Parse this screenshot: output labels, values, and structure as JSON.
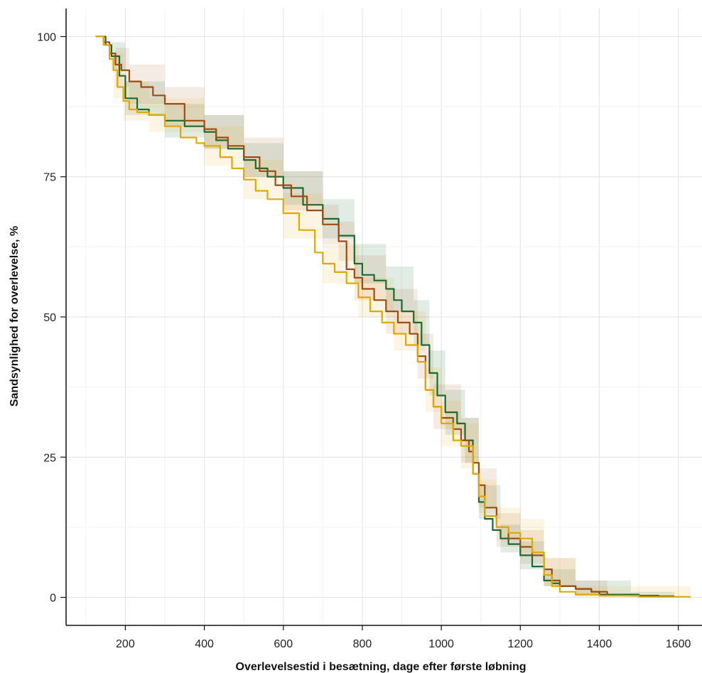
{
  "chart_data": {
    "type": "line",
    "title": "",
    "xlabel": "Overlevelsestid  i besætning, dage efter første løbning",
    "ylabel": "Sandsynlighed for overlevelse, %",
    "xlim": [
      50,
      1660
    ],
    "ylim": [
      -5,
      105
    ],
    "xticks": [
      200,
      400,
      600,
      800,
      1000,
      1200,
      1400,
      1600
    ],
    "yticks": [
      0,
      25,
      50,
      75,
      100
    ],
    "grid": true,
    "legend": "none",
    "series": [
      {
        "color": "#1b6b2f",
        "band_opacity": 0.13,
        "x": [
          125,
          150,
          165,
          185,
          200,
          230,
          260,
          300,
          350,
          400,
          430,
          460,
          500,
          530,
          560,
          600,
          650,
          700,
          740,
          780,
          800,
          830,
          860,
          880,
          900,
          930,
          950,
          970,
          990,
          1010,
          1040,
          1060,
          1080,
          1095,
          1110,
          1130,
          1150,
          1170,
          1200,
          1230,
          1260,
          1280,
          1300,
          1340,
          1380,
          1400,
          1450,
          1500,
          1550,
          1590
        ],
        "y": [
          100,
          98.5,
          96.5,
          93,
          89,
          87,
          86,
          85,
          84,
          83,
          81.5,
          80,
          78,
          76.5,
          75,
          73,
          70,
          67.5,
          64.5,
          59.5,
          57.5,
          56.5,
          55,
          53,
          51,
          49,
          45,
          40,
          36,
          33,
          31,
          28,
          22,
          17,
          14,
          12,
          10.5,
          9.5,
          7.5,
          5.5,
          3,
          2.5,
          2,
          1.5,
          1,
          0.5,
          0.5,
          0.3,
          0.2,
          0.2
        ],
        "band": [
          [
            125,
            100,
            100
          ],
          [
            165,
            94,
            99
          ],
          [
            200,
            86,
            92
          ],
          [
            300,
            82,
            88
          ],
          [
            400,
            80,
            86
          ],
          [
            500,
            75,
            81
          ],
          [
            600,
            70,
            76
          ],
          [
            700,
            64,
            71
          ],
          [
            780,
            56,
            63
          ],
          [
            860,
            51,
            59
          ],
          [
            930,
            45,
            53
          ],
          [
            970,
            36,
            44
          ],
          [
            1010,
            29,
            37
          ],
          [
            1060,
            24,
            32
          ],
          [
            1095,
            14,
            20
          ],
          [
            1150,
            8,
            13
          ],
          [
            1200,
            5,
            10
          ],
          [
            1260,
            2,
            5
          ],
          [
            1340,
            0.5,
            3
          ],
          [
            1480,
            0,
            1
          ],
          [
            1590,
            0,
            0.5
          ]
        ]
      },
      {
        "color": "#a04a10",
        "band_opacity": 0.11,
        "x": [
          125,
          145,
          160,
          175,
          190,
          210,
          240,
          270,
          300,
          350,
          400,
          430,
          460,
          500,
          540,
          580,
          620,
          660,
          700,
          740,
          760,
          780,
          800,
          830,
          860,
          890,
          920,
          940,
          960,
          980,
          1000,
          1030,
          1050,
          1070,
          1080,
          1095,
          1110,
          1140,
          1170,
          1200,
          1230,
          1260,
          1280,
          1300,
          1340,
          1380,
          1420
        ],
        "y": [
          100,
          99,
          97,
          95,
          94,
          92,
          91,
          89.5,
          88,
          85,
          83.5,
          82,
          80.5,
          78.5,
          76,
          73.5,
          71.5,
          69,
          66.5,
          63.5,
          58.5,
          57,
          55,
          53,
          51,
          49,
          47,
          43,
          37,
          34,
          32,
          30,
          28,
          26,
          24,
          20,
          16,
          12.5,
          10.5,
          9,
          7.5,
          5,
          3,
          2,
          1.5,
          1,
          0.3
        ],
        "band": [
          [
            125,
            100,
            100
          ],
          [
            175,
            91,
            98
          ],
          [
            210,
            88,
            95
          ],
          [
            300,
            84,
            91
          ],
          [
            400,
            80,
            86
          ],
          [
            500,
            75,
            82
          ],
          [
            600,
            69,
            76
          ],
          [
            700,
            63,
            70
          ],
          [
            740,
            60,
            67
          ],
          [
            780,
            53,
            61
          ],
          [
            860,
            47,
            55
          ],
          [
            940,
            39,
            47
          ],
          [
            980,
            30,
            38
          ],
          [
            1050,
            24,
            32
          ],
          [
            1095,
            16,
            23
          ],
          [
            1140,
            9,
            15
          ],
          [
            1200,
            6,
            12
          ],
          [
            1260,
            2,
            7
          ],
          [
            1340,
            0.3,
            3
          ],
          [
            1420,
            0,
            1
          ]
        ]
      },
      {
        "color": "#e0a800",
        "band_opacity": 0.11,
        "x": [
          125,
          145,
          160,
          170,
          180,
          195,
          210,
          230,
          260,
          300,
          340,
          380,
          400,
          440,
          470,
          500,
          530,
          560,
          600,
          640,
          680,
          700,
          730,
          760,
          790,
          820,
          850,
          880,
          910,
          940,
          960,
          980,
          1000,
          1030,
          1050,
          1080,
          1095,
          1110,
          1140,
          1170,
          1200,
          1230,
          1260,
          1280,
          1300,
          1340,
          1400,
          1500,
          1630
        ],
        "y": [
          100,
          98.5,
          96,
          94,
          91,
          88.5,
          87,
          86.5,
          86,
          84,
          82,
          81,
          80.5,
          78.5,
          76.5,
          74.5,
          72.5,
          71,
          68.5,
          65.5,
          61.5,
          59.5,
          58,
          56,
          53.5,
          51,
          49,
          47,
          45,
          42,
          37,
          34,
          31,
          28,
          27,
          22,
          18,
          14.5,
          12.5,
          11.5,
          10.5,
          8,
          4,
          2,
          1,
          0.5,
          0.3,
          0.1,
          0
        ],
        "band": [
          [
            125,
            100,
            100
          ],
          [
            170,
            89,
            97
          ],
          [
            195,
            85,
            92
          ],
          [
            260,
            83,
            89
          ],
          [
            400,
            77,
            84
          ],
          [
            500,
            71,
            78
          ],
          [
            600,
            64,
            72
          ],
          [
            700,
            56,
            63
          ],
          [
            790,
            50,
            57
          ],
          [
            880,
            44,
            51
          ],
          [
            960,
            33,
            41
          ],
          [
            1000,
            27,
            35
          ],
          [
            1050,
            23,
            31
          ],
          [
            1095,
            15,
            21
          ],
          [
            1140,
            10,
            16
          ],
          [
            1200,
            8,
            14
          ],
          [
            1260,
            2,
            7
          ],
          [
            1340,
            0,
            2
          ],
          [
            1630,
            0,
            0.5
          ]
        ]
      }
    ]
  }
}
